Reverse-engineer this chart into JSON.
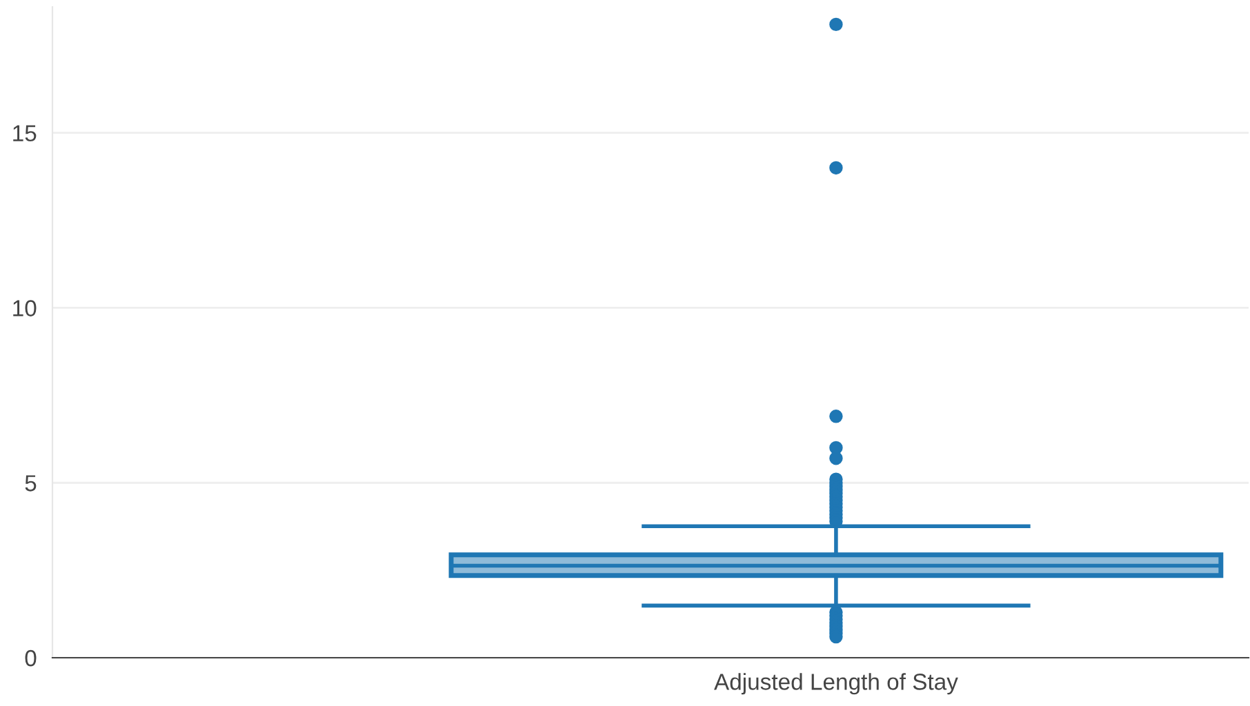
{
  "chart_data": {
    "type": "box",
    "categories": [
      "Adjusted Length of Stay"
    ],
    "series": [
      {
        "color": "#1f77b4",
        "boxes": [
          {
            "low": 1.49,
            "q1": 2.35,
            "median": 2.63,
            "q3": 2.94,
            "high": 3.76,
            "outliers": [
              18.1,
              14.0,
              6.9,
              6.0,
              5.7,
              5.1,
              5.0,
              4.9,
              4.8,
              4.7,
              4.6,
              4.5,
              4.4,
              4.3,
              4.2,
              4.1,
              4.0,
              3.9,
              1.3,
              1.2,
              1.1,
              1.0,
              0.9,
              0.8,
              0.7,
              0.6
            ]
          }
        ]
      }
    ],
    "ylim": [
      0,
      18.6
    ],
    "yticks": [
      0,
      5,
      10,
      15
    ],
    "grid": "y"
  }
}
